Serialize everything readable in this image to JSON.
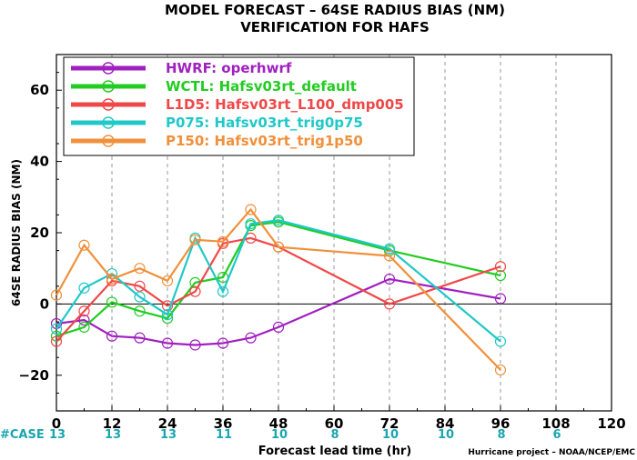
{
  "chart_data": {
    "type": "line",
    "title": "MODEL FORECAST – 64SE RADIUS BIAS (NM)",
    "subtitle": "VERIFICATION FOR HAFS",
    "xlabel": "Forecast lead time (hr)",
    "ylabel": "64SE RADIUS BIAS (NM)",
    "xlim": [
      0,
      120
    ],
    "ylim": [
      -30,
      70
    ],
    "xticks": [
      0,
      12,
      24,
      36,
      48,
      60,
      72,
      84,
      96,
      108,
      120
    ],
    "yticks": [
      -20,
      0,
      20,
      40,
      60
    ],
    "ytick_labels": [
      "−20",
      "0",
      "20",
      "40",
      "60"
    ],
    "grid": "dashed vertical at x ticks",
    "legend_position": "top-left",
    "credit": "Hurricane project – NOAA/NCEP/EMC",
    "cases": {
      "label": "#CASE",
      "x": [
        0,
        12,
        24,
        36,
        48,
        60,
        72,
        84,
        96,
        108
      ],
      "values": [
        "13",
        "13",
        "13",
        "11",
        "10",
        "8",
        "10",
        "10",
        "8",
        "6"
      ]
    },
    "series": [
      {
        "name": "HWRF: operhwrf",
        "color": "#a020c0",
        "x": [
          0,
          6,
          12,
          18,
          24,
          30,
          36,
          42,
          48,
          72,
          96
        ],
        "y": [
          -5.5,
          -4.5,
          -9,
          -9.5,
          -11,
          -11.5,
          -11,
          -9.5,
          -6.5,
          7,
          1.5
        ]
      },
      {
        "name": "WCTL: Hafsv03rt_default",
        "color": "#22cc22",
        "x": [
          0,
          6,
          12,
          18,
          24,
          30,
          36,
          42,
          48,
          72,
          96
        ],
        "y": [
          -9,
          -6.5,
          0.5,
          -2,
          -4,
          6,
          7.5,
          22,
          23,
          15,
          8
        ]
      },
      {
        "name": "L1D5: Hafsv03rt_L100_dmp005",
        "color": "#f04848",
        "x": [
          0,
          6,
          12,
          18,
          24,
          30,
          36,
          42,
          48,
          72,
          96
        ],
        "y": [
          -10.5,
          -2,
          6.5,
          5,
          -0.5,
          3.5,
          17,
          18.5,
          16,
          0,
          10.5
        ]
      },
      {
        "name": "P075: Hafsv03rt_trig0p75",
        "color": "#20c8c8",
        "x": [
          0,
          6,
          12,
          18,
          24,
          30,
          36,
          42,
          48,
          72,
          96
        ],
        "y": [
          -7,
          4.5,
          8.5,
          2,
          -3,
          18.5,
          3.5,
          22.5,
          23.5,
          15.5,
          -10.5
        ]
      },
      {
        "name": "P150: Hafsv03rt_trig1p50",
        "color": "#f0903a",
        "x": [
          0,
          6,
          12,
          18,
          24,
          30,
          36,
          42,
          48,
          72,
          96
        ],
        "y": [
          2.5,
          16.5,
          7,
          10,
          6.5,
          18,
          17.5,
          26.5,
          16,
          13.5,
          -18.5
        ]
      }
    ]
  }
}
